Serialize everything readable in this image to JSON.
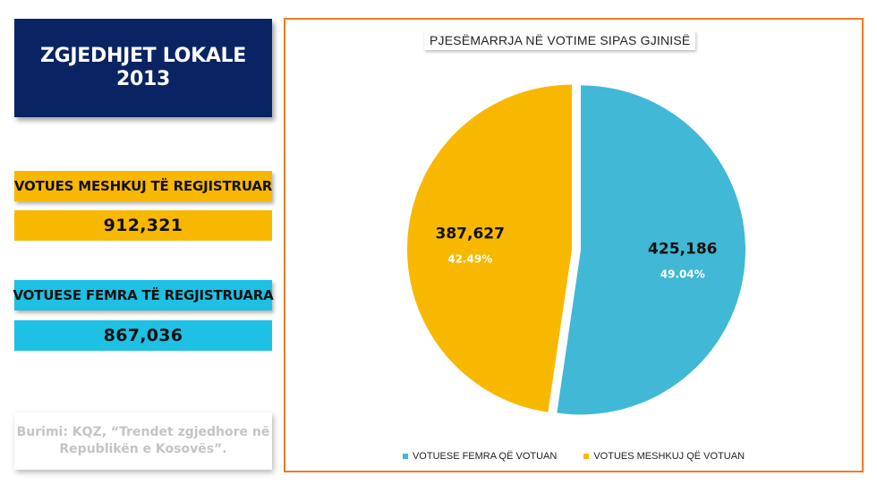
{
  "header": {
    "line1": "ZGJEDHJET LOKALE",
    "line2": "2013"
  },
  "stats": {
    "male": {
      "label": "VOTUES MESHKUJ TË REGJISTRUAR",
      "value": "912,321",
      "color": "#f9b800"
    },
    "female": {
      "label": "VOTUESE FEMRA TË REGJISTRUARA",
      "value": "867,036",
      "color": "#1ec0e3"
    }
  },
  "source": {
    "line1": "Burimi: KQZ, “Trendet zgjedhore në",
    "line2": "Republikën e Kosovës”."
  },
  "chart_data": {
    "type": "pie",
    "title": "PJESËMARRJA NË VOTIME SIPAS GJINISË",
    "slices": [
      {
        "name": "VOTUESE FEMRA QË VOTUAN",
        "value": 425186,
        "value_label": "425,186",
        "percent_label": "49.04%",
        "color": "#41b8d5"
      },
      {
        "name": "VOTUES MESHKUJ QË VOTUAN",
        "value": 387627,
        "value_label": "387,627",
        "percent_label": "42.49%",
        "color": "#f9b800"
      }
    ],
    "legend_position": "bottom"
  },
  "colors": {
    "title_bg": "#0a2463",
    "frame_border": "#f07a22"
  }
}
